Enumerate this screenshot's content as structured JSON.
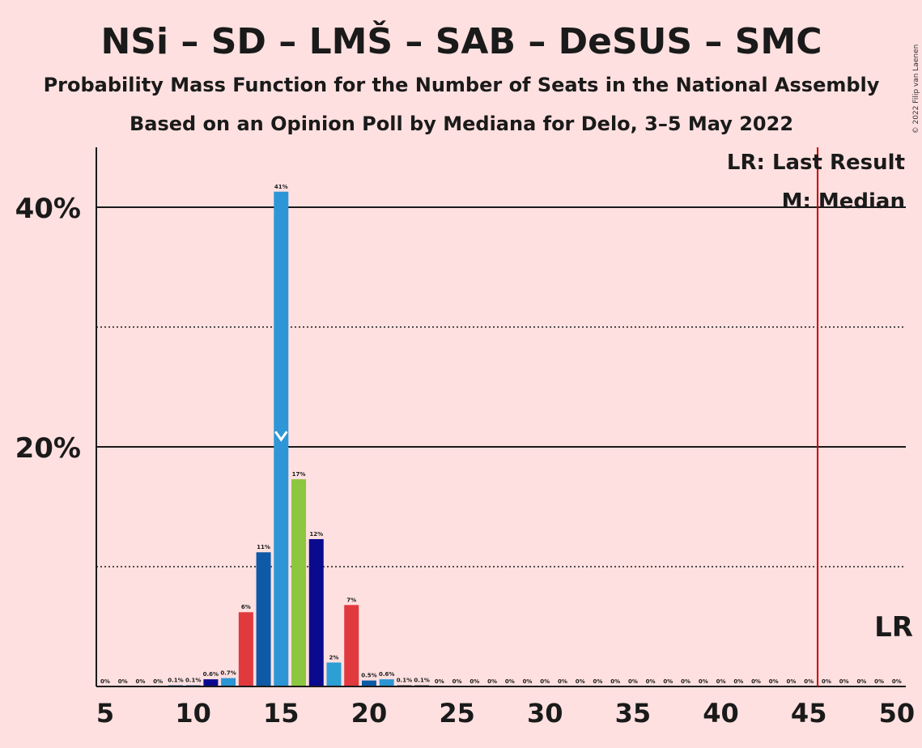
{
  "chart_data": {
    "type": "bar",
    "title": "NSi – SD – LMŠ – SAB – DeSUS – SMC",
    "subtitle": "Probability Mass Function for the Number of Seats in the National Assembly",
    "subtitle2": "Based on an Opinion Poll by Mediana for Delo, 3–5 May 2022",
    "copyright": "© 2022 Filip van Laenen",
    "legend": {
      "lr": "LR: Last Result",
      "m": "M: Median",
      "placement": "top-right"
    },
    "lr_marker_label": "LR",
    "median_marker": "M",
    "median_seats": 15,
    "last_result_seats": 45.5,
    "x_ticks": [
      "5",
      "10",
      "15",
      "20",
      "25",
      "30",
      "35",
      "40",
      "45",
      "50"
    ],
    "y_ticks": [
      "20%",
      "40%"
    ],
    "ylim": [
      0,
      45
    ],
    "grid": "solid at 20% and 40%, dotted at 10% and 30%",
    "x": [
      5,
      6,
      7,
      8,
      9,
      10,
      11,
      12,
      13,
      14,
      15,
      16,
      17,
      18,
      19,
      20,
      21,
      22,
      23,
      24,
      25,
      26,
      27,
      28,
      29,
      30,
      31,
      32,
      33,
      34,
      35,
      36,
      37,
      38,
      39,
      40,
      41,
      42,
      43,
      44,
      45,
      46,
      47,
      48,
      49,
      50
    ],
    "values": [
      0,
      0,
      0,
      0,
      0.1,
      0.1,
      0.6,
      0.7,
      6.2,
      11.2,
      41.3,
      17.3,
      12.3,
      2.0,
      6.8,
      0.5,
      0.6,
      0.1,
      0.1,
      0,
      0,
      0,
      0,
      0,
      0,
      0,
      0,
      0,
      0,
      0,
      0,
      0,
      0,
      0,
      0,
      0,
      0,
      0,
      0,
      0,
      0,
      0,
      0,
      0,
      0,
      0
    ],
    "labels": [
      "0%",
      "0%",
      "0%",
      "0%",
      "0.1%",
      "0.1%",
      "0.6%",
      "0.7%",
      "6%",
      "11%",
      "41%",
      "17%",
      "12%",
      "2%",
      "7%",
      "0.5%",
      "0.6%",
      "0.1%",
      "0.1%",
      "0%",
      "0%",
      "0%",
      "0%",
      "0%",
      "0%",
      "0%",
      "0%",
      "0%",
      "0%",
      "0%",
      "0%",
      "0%",
      "0%",
      "0%",
      "0%",
      "0%",
      "0%",
      "0%",
      "0%",
      "0%",
      "0%",
      "0%",
      "0%",
      "0%",
      "0%",
      "0%"
    ],
    "colors": [
      "#2C2C2C",
      "#2C2C2C",
      "#2C2C2C",
      "#2C2C2C",
      "#0E4A9E",
      "#0E4A9E",
      "#0A0A8F",
      "#2C95D4",
      "#E03A3E",
      "#0E5AA7",
      "#2E96D6",
      "#8DC63F",
      "#0A0A8F",
      "#2C9FD4",
      "#E03A3E",
      "#0E5AA7",
      "#2C95D4",
      "#2C2C2C",
      "#2C2C2C",
      "#2C2C2C",
      "#2C2C2C",
      "#2C2C2C",
      "#2C2C2C",
      "#2C2C2C",
      "#2C2C2C",
      "#2C2C2C",
      "#2C2C2C",
      "#2C2C2C",
      "#2C2C2C",
      "#2C2C2C",
      "#2C2C2C",
      "#2C2C2C",
      "#2C2C2C",
      "#2C2C2C",
      "#2C2C2C",
      "#2C2C2C",
      "#2C2C2C",
      "#2C2C2C",
      "#2C2C2C",
      "#2C2C2C",
      "#2C2C2C",
      "#2C2C2C",
      "#2C2C2C",
      "#2C2C2C",
      "#2C2C2C",
      "#2C2C2C"
    ],
    "lr_line_color": "#CC0000",
    "background": "#FFE0E0"
  }
}
